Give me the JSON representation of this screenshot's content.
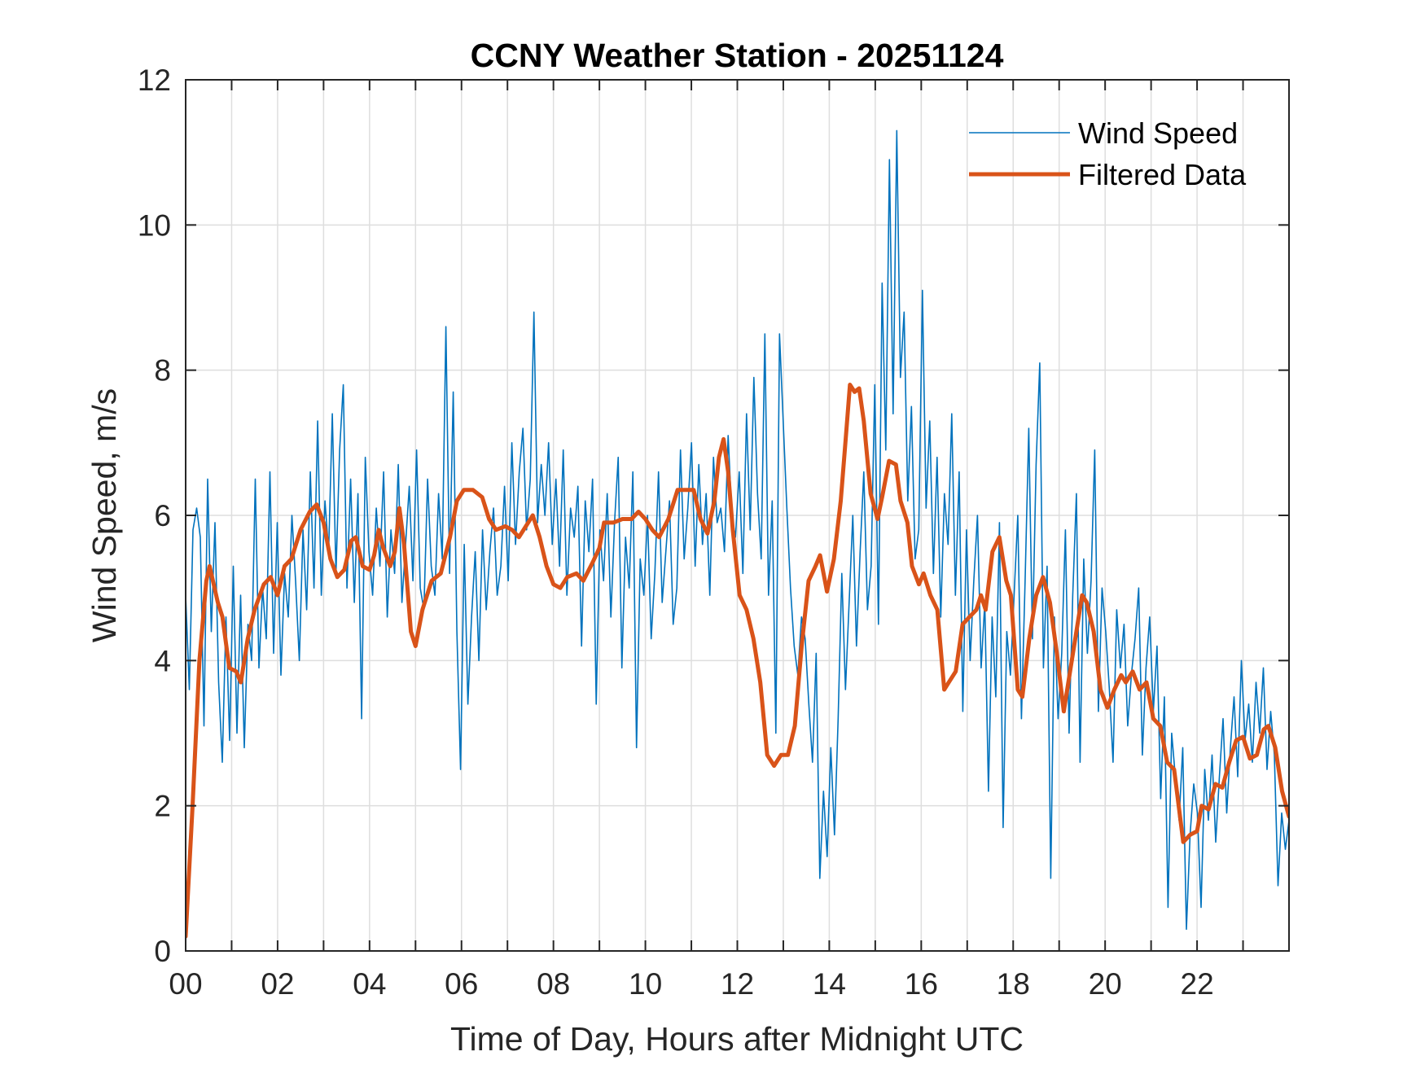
{
  "chart_data": {
    "type": "line",
    "title": "CCNY Weather Station - 20251124",
    "xlabel": "Time of Day, Hours after Midnight UTC",
    "ylabel": "Wind Speed, m/s",
    "xlim": [
      0,
      24
    ],
    "ylim": [
      0,
      12
    ],
    "grid": true,
    "legend_position": "top-right",
    "x_ticks": [
      0,
      2,
      4,
      6,
      8,
      10,
      12,
      14,
      16,
      18,
      20,
      22
    ],
    "x_tick_labels": [
      "00",
      "02",
      "04",
      "06",
      "08",
      "10",
      "12",
      "14",
      "16",
      "18",
      "20",
      "22"
    ],
    "x_minor_ticks": [
      1,
      3,
      5,
      7,
      9,
      11,
      13,
      15,
      17,
      19,
      21,
      23
    ],
    "y_ticks": [
      0,
      2,
      4,
      6,
      8,
      10,
      12
    ],
    "y_tick_labels": [
      "0",
      "2",
      "4",
      "6",
      "8",
      "10",
      "12"
    ],
    "series": [
      {
        "name": "Wind Speed",
        "color": "#0072BD",
        "x_start": 0,
        "x_step": 0.05,
        "values": [
          4.9,
          3.6,
          5.8,
          6.1,
          5.7,
          3.1,
          6.5,
          4.4,
          5.9,
          3.7,
          2.6,
          4.6,
          2.9,
          5.3,
          3.0,
          4.9,
          2.8,
          4.5,
          4.0,
          6.5,
          3.9,
          5.0,
          4.3,
          6.6,
          4.1,
          5.9,
          3.8,
          5.2,
          4.6,
          6.0,
          5.1,
          4.0,
          5.8,
          4.7,
          6.6,
          5.0,
          7.3,
          4.9,
          6.2,
          5.5,
          7.4,
          5.2,
          6.9,
          7.8,
          5.0,
          6.5,
          4.8,
          6.3,
          3.2,
          6.8,
          5.5,
          4.9,
          6.1,
          5.3,
          6.6,
          4.6,
          5.8,
          5.2,
          6.7,
          4.8,
          5.6,
          6.4,
          5.1,
          6.9,
          5.0,
          4.7,
          6.5,
          5.3,
          4.9,
          6.3,
          5.4,
          8.6,
          5.2,
          7.7,
          4.4,
          2.5,
          5.6,
          3.4,
          4.6,
          5.5,
          4.0,
          5.8,
          4.7,
          5.5,
          6.1,
          4.9,
          5.3,
          6.4,
          5.1,
          7.0,
          5.6,
          6.6,
          7.2,
          5.8,
          6.5,
          8.8,
          5.9,
          6.7,
          6.0,
          7.0,
          5.6,
          6.5,
          5.3,
          6.9,
          4.9,
          6.1,
          5.7,
          6.4,
          4.2,
          6.2,
          5.5,
          6.5,
          3.4,
          5.8,
          5.1,
          6.3,
          4.6,
          5.9,
          6.8,
          3.9,
          5.7,
          5.0,
          6.6,
          2.8,
          5.4,
          4.9,
          6.0,
          4.3,
          5.2,
          6.6,
          4.8,
          5.5,
          6.2,
          4.5,
          5.0,
          6.9,
          5.4,
          6.1,
          7.0,
          5.3,
          6.7,
          5.6,
          6.3,
          4.9,
          6.8,
          5.9,
          6.1,
          5.5,
          7.1,
          6.0,
          5.7,
          6.6,
          5.2,
          7.4,
          5.8,
          7.9,
          6.3,
          5.4,
          8.5,
          4.9,
          6.2,
          3.0,
          8.5,
          7.3,
          6.1,
          5.0,
          4.2,
          3.8,
          4.6,
          4.3,
          3.4,
          2.6,
          4.1,
          1.0,
          2.2,
          1.3,
          2.8,
          1.6,
          3.2,
          5.2,
          3.6,
          4.8,
          6.0,
          4.2,
          5.5,
          6.6,
          4.7,
          5.3,
          7.8,
          4.5,
          9.2,
          6.9,
          10.9,
          7.4,
          11.3,
          7.9,
          8.8,
          6.2,
          7.5,
          5.4,
          5.8,
          9.1,
          6.1,
          7.3,
          5.2,
          6.8,
          4.6,
          6.3,
          5.6,
          7.4,
          4.9,
          6.6,
          3.3,
          5.8,
          4.0,
          5.1,
          6.0,
          3.9,
          4.8,
          2.2,
          4.6,
          3.5,
          5.9,
          1.7,
          4.4,
          3.8,
          4.9,
          6.0,
          3.2,
          5.1,
          7.2,
          4.3,
          6.7,
          8.1,
          3.9,
          5.3,
          1.0,
          4.6,
          3.2,
          4.1,
          5.8,
          3.0,
          4.9,
          6.3,
          2.6,
          5.4,
          4.1,
          5.1,
          6.9,
          3.3,
          5.0,
          4.4,
          3.6,
          2.6,
          4.7,
          3.9,
          4.5,
          3.1,
          3.8,
          4.3,
          5.0,
          2.7,
          3.9,
          4.6,
          3.3,
          4.2,
          2.1,
          3.5,
          0.6,
          3.0,
          2.4,
          1.8,
          2.8,
          0.3,
          1.6,
          2.3,
          1.9,
          0.6,
          2.5,
          1.8,
          2.7,
          1.5,
          2.4,
          3.2,
          1.9,
          2.8,
          3.5,
          2.4,
          4.0,
          2.9,
          3.4,
          2.6,
          3.7,
          3.0,
          3.9,
          2.5,
          3.3,
          2.7,
          0.9,
          1.9,
          1.4,
          1.8
        ]
      },
      {
        "name": "Filtered Data",
        "color": "#D95319",
        "points": [
          [
            0.0,
            0.2
          ],
          [
            0.15,
            2.0
          ],
          [
            0.3,
            4.0
          ],
          [
            0.45,
            5.1
          ],
          [
            0.52,
            5.3
          ],
          [
            0.7,
            4.8
          ],
          [
            0.8,
            4.6
          ],
          [
            0.95,
            3.9
          ],
          [
            1.1,
            3.85
          ],
          [
            1.2,
            3.7
          ],
          [
            1.35,
            4.3
          ],
          [
            1.5,
            4.7
          ],
          [
            1.7,
            5.05
          ],
          [
            1.85,
            5.15
          ],
          [
            2.0,
            4.9
          ],
          [
            2.15,
            5.3
          ],
          [
            2.3,
            5.4
          ],
          [
            2.5,
            5.8
          ],
          [
            2.7,
            6.05
          ],
          [
            2.85,
            6.15
          ],
          [
            3.0,
            5.9
          ],
          [
            3.15,
            5.4
          ],
          [
            3.3,
            5.15
          ],
          [
            3.45,
            5.25
          ],
          [
            3.6,
            5.65
          ],
          [
            3.7,
            5.7
          ],
          [
            3.85,
            5.3
          ],
          [
            4.0,
            5.25
          ],
          [
            4.1,
            5.45
          ],
          [
            4.2,
            5.8
          ],
          [
            4.3,
            5.55
          ],
          [
            4.45,
            5.3
          ],
          [
            4.55,
            5.5
          ],
          [
            4.65,
            6.1
          ],
          [
            4.75,
            5.6
          ],
          [
            4.9,
            4.4
          ],
          [
            5.0,
            4.2
          ],
          [
            5.15,
            4.7
          ],
          [
            5.35,
            5.1
          ],
          [
            5.55,
            5.2
          ],
          [
            5.75,
            5.7
          ],
          [
            5.9,
            6.2
          ],
          [
            6.05,
            6.35
          ],
          [
            6.25,
            6.35
          ],
          [
            6.45,
            6.25
          ],
          [
            6.6,
            5.95
          ],
          [
            6.75,
            5.8
          ],
          [
            6.95,
            5.85
          ],
          [
            7.1,
            5.8
          ],
          [
            7.25,
            5.7
          ],
          [
            7.4,
            5.85
          ],
          [
            7.55,
            6.0
          ],
          [
            7.7,
            5.7
          ],
          [
            7.85,
            5.3
          ],
          [
            8.0,
            5.05
          ],
          [
            8.15,
            5.0
          ],
          [
            8.3,
            5.15
          ],
          [
            8.5,
            5.2
          ],
          [
            8.65,
            5.1
          ],
          [
            8.85,
            5.35
          ],
          [
            9.0,
            5.55
          ],
          [
            9.1,
            5.9
          ],
          [
            9.3,
            5.9
          ],
          [
            9.5,
            5.95
          ],
          [
            9.7,
            5.95
          ],
          [
            9.85,
            6.05
          ],
          [
            10.0,
            5.95
          ],
          [
            10.15,
            5.8
          ],
          [
            10.3,
            5.7
          ],
          [
            10.5,
            5.95
          ],
          [
            10.7,
            6.35
          ],
          [
            10.9,
            6.35
          ],
          [
            11.05,
            6.35
          ],
          [
            11.2,
            5.95
          ],
          [
            11.35,
            5.75
          ],
          [
            11.5,
            6.2
          ],
          [
            11.6,
            6.8
          ],
          [
            11.7,
            7.05
          ],
          [
            11.8,
            6.6
          ],
          [
            11.9,
            5.8
          ],
          [
            12.05,
            4.9
          ],
          [
            12.2,
            4.7
          ],
          [
            12.35,
            4.3
          ],
          [
            12.5,
            3.7
          ],
          [
            12.65,
            2.7
          ],
          [
            12.8,
            2.55
          ],
          [
            12.95,
            2.7
          ],
          [
            13.1,
            2.7
          ],
          [
            13.25,
            3.1
          ],
          [
            13.4,
            4.2
          ],
          [
            13.55,
            5.1
          ],
          [
            13.7,
            5.3
          ],
          [
            13.8,
            5.45
          ],
          [
            13.95,
            4.95
          ],
          [
            14.1,
            5.4
          ],
          [
            14.25,
            6.2
          ],
          [
            14.35,
            7.0
          ],
          [
            14.45,
            7.8
          ],
          [
            14.55,
            7.7
          ],
          [
            14.65,
            7.75
          ],
          [
            14.75,
            7.3
          ],
          [
            14.9,
            6.3
          ],
          [
            15.05,
            5.95
          ],
          [
            15.15,
            6.25
          ],
          [
            15.3,
            6.75
          ],
          [
            15.45,
            6.7
          ],
          [
            15.55,
            6.2
          ],
          [
            15.7,
            5.9
          ],
          [
            15.8,
            5.3
          ],
          [
            15.95,
            5.05
          ],
          [
            16.05,
            5.2
          ],
          [
            16.2,
            4.9
          ],
          [
            16.35,
            4.7
          ],
          [
            16.5,
            3.6
          ],
          [
            16.6,
            3.7
          ],
          [
            16.75,
            3.85
          ],
          [
            16.9,
            4.5
          ],
          [
            17.05,
            4.6
          ],
          [
            17.2,
            4.7
          ],
          [
            17.3,
            4.9
          ],
          [
            17.4,
            4.7
          ],
          [
            17.55,
            5.5
          ],
          [
            17.7,
            5.7
          ],
          [
            17.85,
            5.1
          ],
          [
            17.95,
            4.9
          ],
          [
            18.1,
            3.6
          ],
          [
            18.2,
            3.5
          ],
          [
            18.35,
            4.3
          ],
          [
            18.5,
            4.9
          ],
          [
            18.65,
            5.15
          ],
          [
            18.8,
            4.8
          ],
          [
            18.95,
            4.1
          ],
          [
            19.1,
            3.3
          ],
          [
            19.25,
            3.9
          ],
          [
            19.4,
            4.5
          ],
          [
            19.5,
            4.9
          ],
          [
            19.6,
            4.8
          ],
          [
            19.75,
            4.4
          ],
          [
            19.9,
            3.6
          ],
          [
            20.05,
            3.35
          ],
          [
            20.2,
            3.6
          ],
          [
            20.35,
            3.8
          ],
          [
            20.45,
            3.7
          ],
          [
            20.6,
            3.85
          ],
          [
            20.75,
            3.6
          ],
          [
            20.9,
            3.7
          ],
          [
            21.05,
            3.2
          ],
          [
            21.2,
            3.1
          ],
          [
            21.35,
            2.6
          ],
          [
            21.5,
            2.5
          ],
          [
            21.6,
            2.0
          ],
          [
            21.7,
            1.5
          ],
          [
            21.85,
            1.6
          ],
          [
            22.0,
            1.65
          ],
          [
            22.1,
            2.0
          ],
          [
            22.25,
            1.95
          ],
          [
            22.4,
            2.3
          ],
          [
            22.55,
            2.25
          ],
          [
            22.7,
            2.6
          ],
          [
            22.85,
            2.9
          ],
          [
            23.0,
            2.95
          ],
          [
            23.15,
            2.65
          ],
          [
            23.3,
            2.7
          ],
          [
            23.45,
            3.05
          ],
          [
            23.55,
            3.1
          ],
          [
            23.7,
            2.8
          ],
          [
            23.85,
            2.2
          ],
          [
            24.0,
            1.85
          ]
        ]
      }
    ],
    "legend": [
      {
        "label": "Wind Speed",
        "color": "#0072BD"
      },
      {
        "label": "Filtered Data",
        "color": "#D95319"
      }
    ]
  }
}
